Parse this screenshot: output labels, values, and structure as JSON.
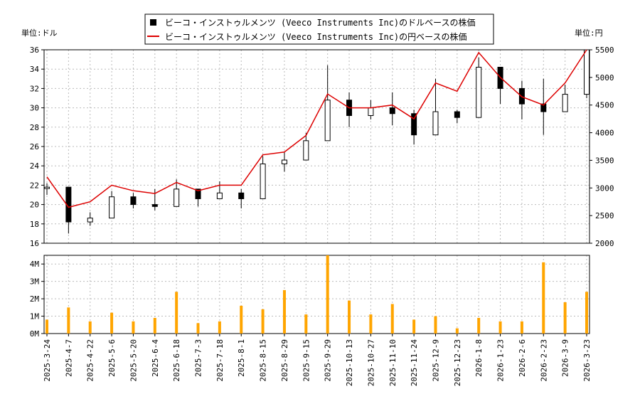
{
  "chart_data": [
    {
      "type": "candlestick+line",
      "legend": {
        "placement": "top-center",
        "entries": [
          {
            "label": "ビーコ・インストゥルメンツ (Veeco Instruments Inc)のドルベースの株価",
            "symbol": "black-square"
          },
          {
            "label": "ビーコ・インストゥルメンツ (Veeco Instruments Inc)の円ベースの株価",
            "symbol": "red-line"
          }
        ]
      },
      "left_axis": {
        "unit_label": "単位:ドル",
        "ylim": [
          16,
          36
        ],
        "ticks": [
          16,
          18,
          20,
          22,
          24,
          26,
          28,
          30,
          32,
          34,
          36
        ]
      },
      "right_axis": {
        "unit_label": "単位:円",
        "ylim": [
          2000,
          5500
        ],
        "ticks": [
          2000,
          2500,
          3000,
          3500,
          4000,
          4500,
          5000,
          5500
        ]
      },
      "grid": true,
      "dates": [
        "2025-3-24",
        "2025-4-7",
        "2025-4-22",
        "2025-5-6",
        "2025-5-20",
        "2025-6-4",
        "2025-6-18",
        "2025-7-3",
        "2025-7-18",
        "2025-8-1",
        "2025-8-15",
        "2025-8-29",
        "2025-9-15",
        "2025-9-29",
        "2025-10-13",
        "2025-10-27",
        "2025-11-10",
        "2025-11-24",
        "2025-12-9",
        "2025-12-23",
        "2026-1-8",
        "2026-1-23",
        "2026-2-6",
        "2026-2-23",
        "2026-3-9",
        "2026-3-23"
      ],
      "usd_close": [
        21.8,
        18.2,
        18.6,
        20.8,
        20.0,
        19.8,
        21.6,
        20.6,
        21.2,
        20.6,
        24.2,
        24.6,
        26.6,
        30.8,
        29.2,
        30.0,
        29.4,
        27.2,
        29.6,
        29.0,
        34.2,
        32.0,
        30.4,
        29.6,
        31.4,
        36.0
      ],
      "usd_high": [
        22.2,
        19.4,
        19.2,
        21.4,
        21.2,
        21.6,
        22.6,
        21.6,
        22.4,
        21.6,
        25.0,
        25.4,
        27.4,
        34.4,
        31.6,
        30.8,
        31.6,
        29.8,
        33.0,
        29.8,
        35.2,
        33.4,
        32.8,
        33.0,
        32.4,
        36.0
      ],
      "usd_low": [
        21.0,
        17.0,
        17.8,
        19.8,
        19.6,
        19.4,
        20.4,
        19.8,
        20.6,
        19.6,
        22.8,
        23.4,
        25.6,
        29.8,
        28.0,
        28.8,
        28.2,
        26.2,
        28.6,
        28.4,
        32.6,
        30.4,
        28.8,
        27.2,
        30.4,
        31.0
      ],
      "jpy_close": [
        3200,
        2650,
        2750,
        3050,
        2950,
        2900,
        3100,
        2950,
        3050,
        3050,
        3600,
        3650,
        3950,
        4700,
        4450,
        4450,
        4500,
        4250,
        4900,
        4750,
        5450,
        5000,
        4650,
        4500,
        4900,
        5500
      ],
      "volume_panel": {
        "type": "bar",
        "color": "#ffa500",
        "ylim": [
          0,
          4500000
        ],
        "ticks": [
          0,
          1000000,
          2000000,
          3000000,
          4000000
        ],
        "tick_labels": [
          "0M",
          "1M",
          "2M",
          "3M",
          "4M"
        ],
        "values": [
          800000,
          1500000,
          700000,
          1200000,
          700000,
          900000,
          2400000,
          600000,
          700000,
          1600000,
          1400000,
          2500000,
          1100000,
          4500000,
          1900000,
          1100000,
          1700000,
          800000,
          1000000,
          300000,
          900000,
          700000,
          700000,
          4100000,
          1800000,
          2400000
        ]
      }
    }
  ]
}
